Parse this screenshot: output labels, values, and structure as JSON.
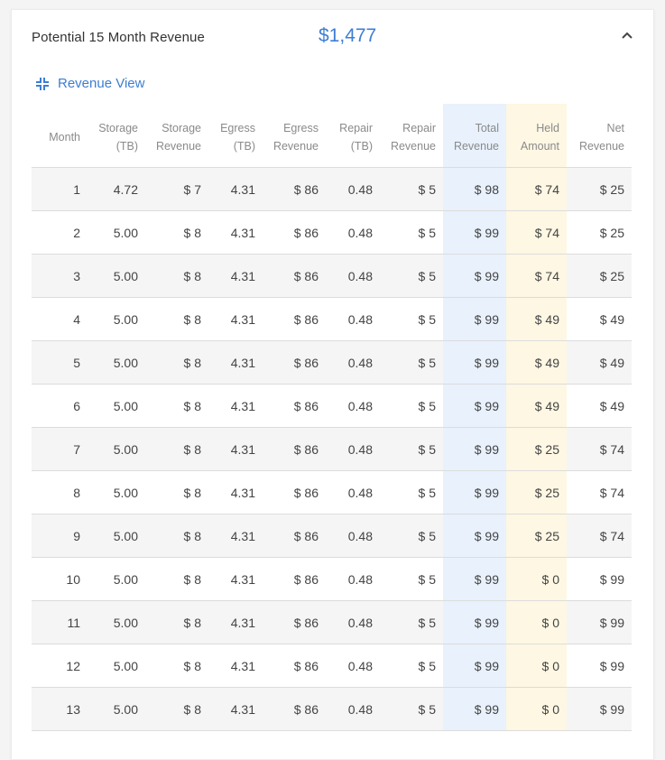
{
  "header": {
    "title": "Potential 15 Month Revenue",
    "amount": "$1,477"
  },
  "view_link": {
    "label": "Revenue View"
  },
  "colors": {
    "accent": "#3c7ed3",
    "total_column": "#e8f1fc",
    "held_column": "#fdf7e3"
  },
  "icons": {
    "collapse": "chevron-up-icon",
    "view": "collapse-arrows-icon"
  },
  "table": {
    "columns": [
      [
        "Month",
        ""
      ],
      [
        "Storage",
        "(TB)"
      ],
      [
        "Storage",
        "Revenue"
      ],
      [
        "Egress",
        "(TB)"
      ],
      [
        "Egress",
        "Revenue"
      ],
      [
        "Repair",
        "(TB)"
      ],
      [
        "Repair",
        "Revenue"
      ],
      [
        "Total",
        "Revenue"
      ],
      [
        "Held",
        "Amount"
      ],
      [
        "Net",
        "Revenue"
      ]
    ],
    "rows": [
      [
        "1",
        "4.72",
        "$ 7",
        "4.31",
        "$ 86",
        "0.48",
        "$ 5",
        "$ 98",
        "$ 74",
        "$ 25"
      ],
      [
        "2",
        "5.00",
        "$ 8",
        "4.31",
        "$ 86",
        "0.48",
        "$ 5",
        "$ 99",
        "$ 74",
        "$ 25"
      ],
      [
        "3",
        "5.00",
        "$ 8",
        "4.31",
        "$ 86",
        "0.48",
        "$ 5",
        "$ 99",
        "$ 74",
        "$ 25"
      ],
      [
        "4",
        "5.00",
        "$ 8",
        "4.31",
        "$ 86",
        "0.48",
        "$ 5",
        "$ 99",
        "$ 49",
        "$ 49"
      ],
      [
        "5",
        "5.00",
        "$ 8",
        "4.31",
        "$ 86",
        "0.48",
        "$ 5",
        "$ 99",
        "$ 49",
        "$ 49"
      ],
      [
        "6",
        "5.00",
        "$ 8",
        "4.31",
        "$ 86",
        "0.48",
        "$ 5",
        "$ 99",
        "$ 49",
        "$ 49"
      ],
      [
        "7",
        "5.00",
        "$ 8",
        "4.31",
        "$ 86",
        "0.48",
        "$ 5",
        "$ 99",
        "$ 25",
        "$ 74"
      ],
      [
        "8",
        "5.00",
        "$ 8",
        "4.31",
        "$ 86",
        "0.48",
        "$ 5",
        "$ 99",
        "$ 25",
        "$ 74"
      ],
      [
        "9",
        "5.00",
        "$ 8",
        "4.31",
        "$ 86",
        "0.48",
        "$ 5",
        "$ 99",
        "$ 25",
        "$ 74"
      ],
      [
        "10",
        "5.00",
        "$ 8",
        "4.31",
        "$ 86",
        "0.48",
        "$ 5",
        "$ 99",
        "$ 0",
        "$ 99"
      ],
      [
        "11",
        "5.00",
        "$ 8",
        "4.31",
        "$ 86",
        "0.48",
        "$ 5",
        "$ 99",
        "$ 0",
        "$ 99"
      ],
      [
        "12",
        "5.00",
        "$ 8",
        "4.31",
        "$ 86",
        "0.48",
        "$ 5",
        "$ 99",
        "$ 0",
        "$ 99"
      ],
      [
        "13",
        "5.00",
        "$ 8",
        "4.31",
        "$ 86",
        "0.48",
        "$ 5",
        "$ 99",
        "$ 0",
        "$ 99"
      ]
    ]
  }
}
